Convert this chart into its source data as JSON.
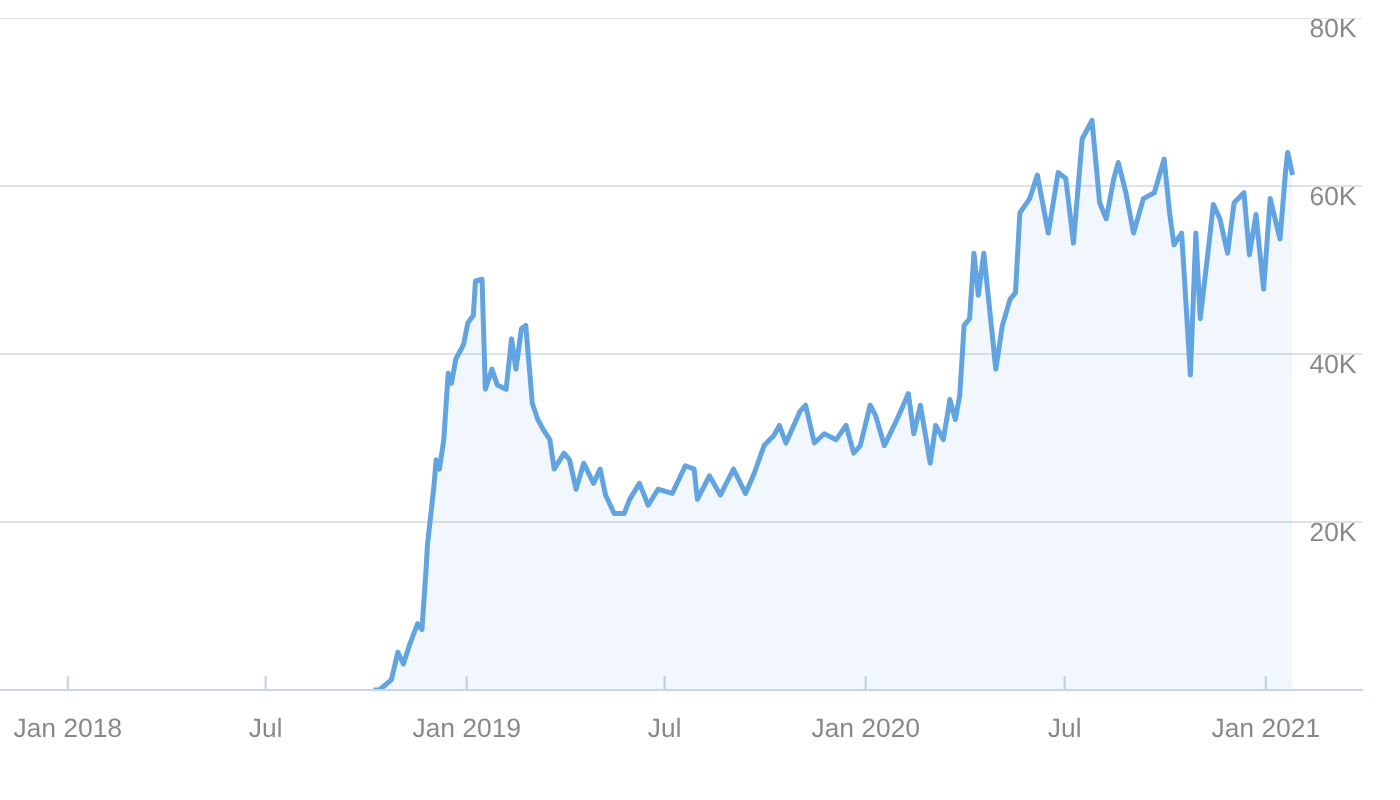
{
  "chart_data": {
    "type": "area",
    "x": [
      "2018-10-10",
      "2018-10-13",
      "2018-10-24",
      "2018-10-30",
      "2018-11-04",
      "2018-11-10",
      "2018-11-17",
      "2018-11-21",
      "2018-11-25",
      "2018-11-26",
      "2018-12-02",
      "2018-12-04",
      "2018-12-07",
      "2018-12-11",
      "2018-12-15",
      "2018-12-18",
      "2018-12-22",
      "2018-12-29",
      "2019-01-02",
      "2019-01-07",
      "2019-01-09",
      "2019-01-15",
      "2019-01-18",
      "2019-01-24",
      "2019-01-29",
      "2019-02-06",
      "2019-02-11",
      "2019-02-15",
      "2019-02-20",
      "2019-02-24",
      "2019-03-02",
      "2019-03-07",
      "2019-03-12",
      "2019-03-18",
      "2019-03-22",
      "2019-03-31",
      "2019-04-05",
      "2019-04-11",
      "2019-04-18",
      "2019-04-27",
      "2019-05-03",
      "2019-05-08",
      "2019-05-16",
      "2019-05-25",
      "2019-05-30",
      "2019-06-08",
      "2019-06-16",
      "2019-06-25",
      "2019-07-08",
      "2019-07-20",
      "2019-07-28",
      "2019-07-31",
      "2019-08-11",
      "2019-08-21",
      "2019-09-02",
      "2019-09-13",
      "2019-09-21",
      "2019-09-30",
      "2019-10-09",
      "2019-10-14",
      "2019-10-20",
      "2019-11-02",
      "2019-11-07",
      "2019-11-15",
      "2019-11-24",
      "2019-12-05",
      "2019-12-14",
      "2019-12-21",
      "2019-12-27",
      "2020-01-05",
      "2020-01-10",
      "2020-01-18",
      "2020-01-27",
      "2020-02-01",
      "2020-02-09",
      "2020-02-14",
      "2020-02-20",
      "2020-02-29",
      "2020-03-05",
      "2020-03-12",
      "2020-03-18",
      "2020-03-23",
      "2020-03-27",
      "2020-03-31",
      "2020-04-05",
      "2020-04-09",
      "2020-04-13",
      "2020-04-18",
      "2020-04-22",
      "2020-04-29",
      "2020-05-05",
      "2020-05-12",
      "2020-05-17",
      "2020-05-21",
      "2020-05-30",
      "2020-06-06",
      "2020-06-16",
      "2020-06-25",
      "2020-07-02",
      "2020-07-09",
      "2020-07-17",
      "2020-07-26",
      "2020-08-02",
      "2020-08-08",
      "2020-08-15",
      "2020-08-19",
      "2020-08-26",
      "2020-09-02",
      "2020-09-11",
      "2020-09-21",
      "2020-09-30",
      "2020-10-05",
      "2020-10-09",
      "2020-10-16",
      "2020-10-24",
      "2020-10-29",
      "2020-11-02",
      "2020-11-09",
      "2020-11-14",
      "2020-11-20",
      "2020-11-27",
      "2020-12-03",
      "2020-12-12",
      "2020-12-17",
      "2020-12-23",
      "2020-12-30",
      "2021-01-05",
      "2021-01-14",
      "2021-01-19",
      "2021-01-21",
      "2021-01-25"
    ],
    "series": [
      {
        "color": "#62a4e2",
        "values": [
          0,
          0,
          1200,
          4500,
          3100,
          5500,
          7900,
          7200,
          14800,
          17200,
          24300,
          27400,
          26300,
          29800,
          37700,
          36500,
          39400,
          41100,
          43700,
          44600,
          48700,
          48900,
          35800,
          38200,
          36300,
          35800,
          41800,
          38200,
          43000,
          43400,
          34100,
          32200,
          31000,
          29800,
          26300,
          28200,
          27400,
          23900,
          27000,
          24600,
          26300,
          23200,
          21000,
          21000,
          22700,
          24600,
          22000,
          23900,
          23400,
          26700,
          26300,
          22700,
          25500,
          23200,
          26300,
          23400,
          25800,
          29100,
          30300,
          31500,
          29400,
          33200,
          33900,
          29400,
          30500,
          29800,
          31500,
          28200,
          29100,
          33900,
          32700,
          29100,
          31500,
          32900,
          35300,
          30500,
          33900,
          27000,
          31500,
          29800,
          34600,
          32200,
          35100,
          43400,
          44200,
          52000,
          47000,
          52000,
          47000,
          38200,
          43400,
          46500,
          47300,
          56800,
          58500,
          61300,
          54400,
          61600,
          60900,
          53200,
          65600,
          67800,
          58000,
          56100,
          60900,
          62800,
          59200,
          54400,
          58500,
          59200,
          63200,
          56800,
          53000,
          54400,
          37500,
          54400,
          44200,
          52000,
          57800,
          56100,
          52000,
          58000,
          59200,
          51800,
          56600,
          47700,
          58500,
          53700,
          61600,
          64000,
          61600
        ]
      }
    ],
    "xlim": [
      "2017-10-31",
      "2021-03-30"
    ],
    "xticks": [
      {
        "value": "2018-01-01",
        "label": "Jan 2018"
      },
      {
        "value": "2018-07-01",
        "label": "Jul"
      },
      {
        "value": "2019-01-01",
        "label": "Jan 2019"
      },
      {
        "value": "2019-07-01",
        "label": "Jul"
      },
      {
        "value": "2020-01-01",
        "label": "Jan 2020"
      },
      {
        "value": "2020-07-01",
        "label": "Jul"
      },
      {
        "value": "2021-01-01",
        "label": "Jan 2021"
      }
    ],
    "ylim": [
      0,
      80000
    ],
    "yticks": [
      {
        "value": 20000,
        "label": "20K"
      },
      {
        "value": 40000,
        "label": "40K"
      },
      {
        "value": 60000,
        "label": "60K"
      },
      {
        "value": 80000,
        "label": "80K"
      }
    ],
    "grid": "y",
    "legend": false,
    "marker": "none",
    "line_style": "solid"
  }
}
